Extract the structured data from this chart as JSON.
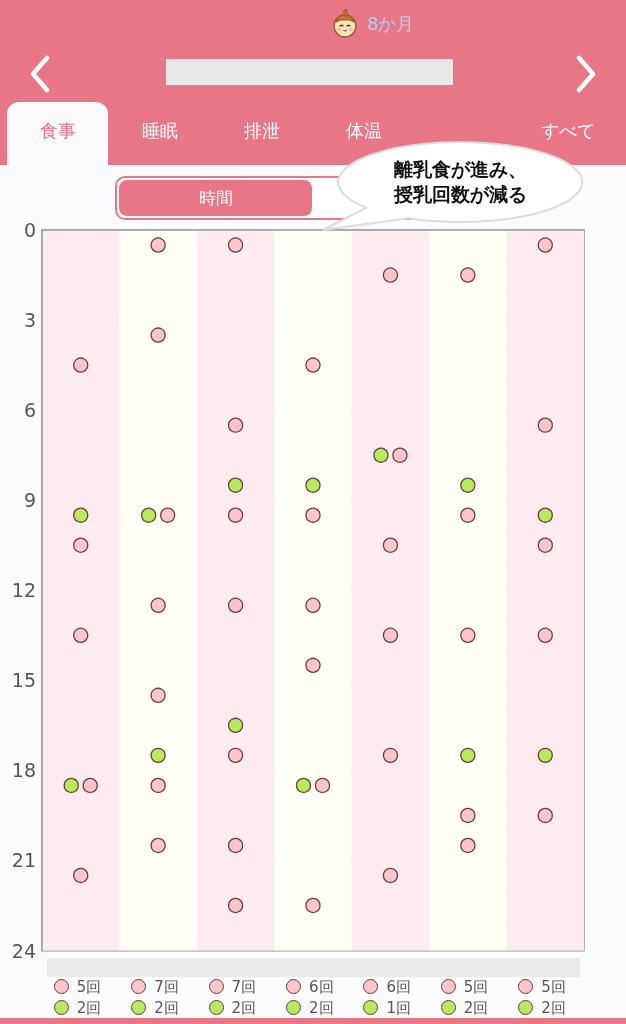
{
  "chart_data": {
    "type": "scatter",
    "title": "8か月",
    "annotations": [
      "離乳食が進み、授乳回数が減る",
      "食事",
      "睡眠",
      "排泄",
      "体温",
      "すべて",
      "時間",
      "5回",
      "7回",
      "7回",
      "6回",
      "6回",
      "5回",
      "5回",
      "2回",
      "2回",
      "2回",
      "2回",
      "1回",
      "2回",
      "2回"
    ],
    "categories": [
      null,
      null,
      null,
      null,
      null,
      null,
      null
    ],
    "series": [
      {
        "color": "#fbc5cb",
        "values": [
          4.5,
          0.5,
          0.5,
          4.5,
          1.5,
          1.5,
          0.5
        ]
      },
      {
        "color": "#fbc5cb",
        "values": [
          10.5,
          3.5,
          6.5,
          9.5,
          7.5,
          9.5,
          6.5
        ]
      },
      {
        "color": "#fbc5cb",
        "values": [
          13.5,
          9.5,
          9.5,
          12.5,
          10.5,
          13.5,
          10.5
        ]
      },
      {
        "color": "#fbc5cb",
        "values": [
          18.5,
          12.5,
          12.5,
          14.5,
          13.5,
          19.5,
          13.5
        ]
      },
      {
        "color": "#fbc5cb",
        "values": [
          21.5,
          15.5,
          17.5,
          18.5,
          17.5,
          20.5,
          19.5
        ]
      },
      {
        "color": "#fbc5cb",
        "values": [
          null,
          18.5,
          20.5,
          22.5,
          21.5,
          null,
          null
        ]
      },
      {
        "color": "#fbc5cb",
        "values": [
          null,
          20.5,
          22.5,
          null,
          null,
          null,
          null
        ]
      },
      {
        "color": "#b7ea5c",
        "values": [
          9.5,
          9.5,
          8.5,
          8.5,
          7.5,
          8.5,
          9.5
        ]
      },
      {
        "color": "#b7ea5c",
        "values": [
          18.5,
          17.5,
          16.5,
          18.5,
          null,
          17.5,
          17.5
        ]
      }
    ],
    "ylim": [
      24,
      0
    ],
    "yticks": [
      0,
      {
        "value": 1,
        "label": null
      },
      {
        "value": 2,
        "label": null
      },
      3,
      {
        "value": 4,
        "label": null
      },
      {
        "value": 5,
        "label": null
      },
      6,
      {
        "value": 7,
        "label": null
      },
      {
        "value": 8,
        "label": null
      },
      9,
      {
        "value": 10,
        "label": null
      },
      {
        "value": 11,
        "label": null
      },
      12,
      {
        "value": 13,
        "label": null
      },
      {
        "value": 14,
        "label": null
      },
      15,
      {
        "value": 16,
        "label": null
      },
      {
        "value": 17,
        "label": null
      },
      18,
      {
        "value": 19,
        "label": null
      },
      {
        "value": 20,
        "label": null
      },
      21,
      {
        "value": 22,
        "label": null
      },
      {
        "value": 23,
        "label": null
      },
      24
    ],
    "grid": "y",
    "tick_labels": "y",
    "marker": "circle"
  }
}
